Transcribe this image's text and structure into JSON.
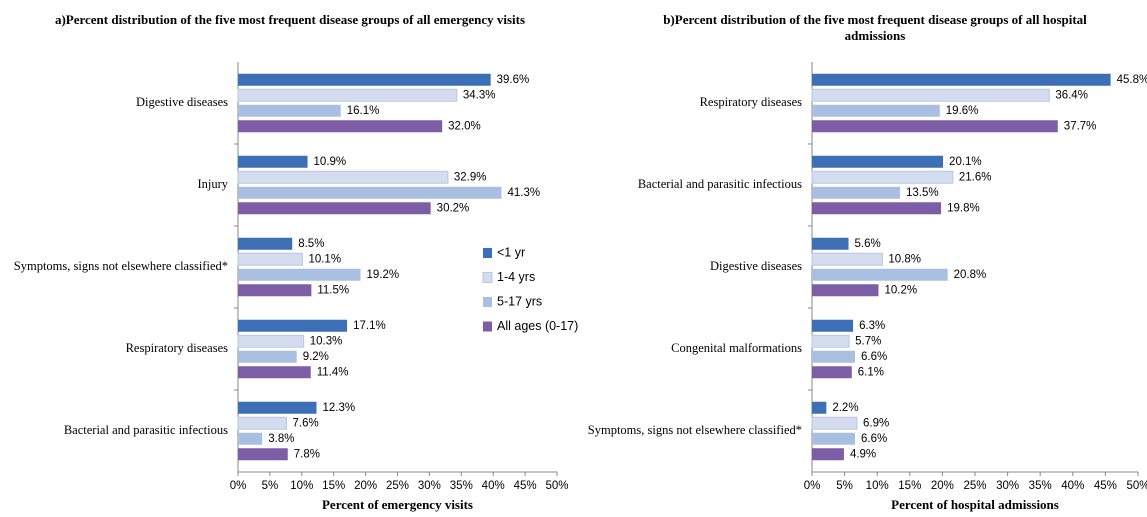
{
  "chart_data": [
    {
      "type": "bar",
      "orientation": "horizontal",
      "title": "a)Percent distribution of the five most frequent disease groups of all emergency visits",
      "x_label": "Percent of emergency visits",
      "categories": [
        "Digestive diseases",
        "Injury",
        "Symptoms, signs not elsewhere classified*",
        "Respiratory diseases",
        "Bacterial and parasitic infectious"
      ],
      "series": [
        {
          "name": "<1 yr",
          "color": "#3c6fb6",
          "values": [
            39.6,
            10.9,
            8.5,
            17.1,
            12.3
          ],
          "value_labels": [
            "39.6%",
            "10.9%",
            "8.5%",
            "17.1%",
            "12.3%"
          ]
        },
        {
          "name": "1-4 yrs",
          "color": "#d3ddef",
          "values": [
            34.3,
            32.9,
            10.1,
            10.3,
            7.6
          ],
          "value_labels": [
            "34.3%",
            "32.9%",
            "10.1%",
            "10.3%",
            "7.6%"
          ]
        },
        {
          "name": "5-17 yrs",
          "color": "#a9bfe2",
          "values": [
            16.1,
            41.3,
            19.2,
            9.2,
            3.8
          ],
          "value_labels": [
            "16.1%",
            "41.3%",
            "19.2%",
            "9.2%",
            "3.8%"
          ]
        },
        {
          "name": "All ages (0-17)",
          "color": "#7d5ea6",
          "values": [
            32.0,
            30.2,
            11.5,
            11.4,
            7.8
          ],
          "value_labels": [
            "32.0%",
            "30.2%",
            "11.5%",
            "11.4%",
            "7.8%"
          ]
        }
      ],
      "xlim": [
        0,
        50
      ],
      "xticks": [
        {
          "value": 0,
          "label": "0%"
        },
        {
          "value": 5,
          "label": "5%"
        },
        {
          "value": 10,
          "label": "10%"
        },
        {
          "value": 15,
          "label": "15%"
        },
        {
          "value": 20,
          "label": "20%"
        },
        {
          "value": 25,
          "label": "25%"
        },
        {
          "value": 30,
          "label": "30%"
        },
        {
          "value": 35,
          "label": "35%"
        },
        {
          "value": 40,
          "label": "40%"
        },
        {
          "value": 45,
          "label": "45%"
        },
        {
          "value": 50,
          "label": "50%"
        }
      ],
      "legend": "inside"
    },
    {
      "type": "bar",
      "orientation": "horizontal",
      "title": "b)Percent distribution of the five most frequent disease groups of all hospital admissions",
      "x_label": "Percent of hospital admissions",
      "categories": [
        "Respiratory diseases",
        "Bacterial and parasitic infectious",
        "Digestive diseases",
        "Congenital malformations",
        "Symptoms, signs not elsewhere classified*"
      ],
      "series": [
        {
          "color": "#3c6fb6",
          "values": [
            45.8,
            20.1,
            5.6,
            6.3,
            2.2
          ],
          "value_labels": [
            "45.8%",
            "20.1%",
            "5.6%",
            "6.3%",
            "2.2%"
          ]
        },
        {
          "color": "#d3ddef",
          "values": [
            36.4,
            21.6,
            10.8,
            5.7,
            6.9
          ],
          "value_labels": [
            "36.4%",
            "21.6%",
            "10.8%",
            "5.7%",
            "6.9%"
          ]
        },
        {
          "color": "#a9bfe2",
          "values": [
            19.6,
            13.5,
            20.8,
            6.6,
            6.6
          ],
          "value_labels": [
            "19.6%",
            "13.5%",
            "20.8%",
            "6.6%",
            "6.6%"
          ]
        },
        {
          "color": "#7d5ea6",
          "values": [
            37.7,
            19.8,
            10.2,
            6.1,
            4.9
          ],
          "value_labels": [
            "37.7%",
            "19.8%",
            "10.2%",
            "6.1%",
            "4.9%"
          ]
        }
      ],
      "xlim": [
        0,
        50
      ],
      "xticks": [
        {
          "value": 0,
          "label": "0%"
        },
        {
          "value": 5,
          "label": "5%"
        },
        {
          "value": 10,
          "label": "10%"
        },
        {
          "value": 15,
          "label": "15%"
        },
        {
          "value": 20,
          "label": "20%"
        },
        {
          "value": 25,
          "label": "25%"
        },
        {
          "value": 30,
          "label": "30%"
        },
        {
          "value": 35,
          "label": "35%"
        },
        {
          "value": 40,
          "label": "40%"
        },
        {
          "value": 45,
          "label": "45%"
        },
        {
          "value": 50,
          "label": "50%"
        }
      ]
    }
  ]
}
